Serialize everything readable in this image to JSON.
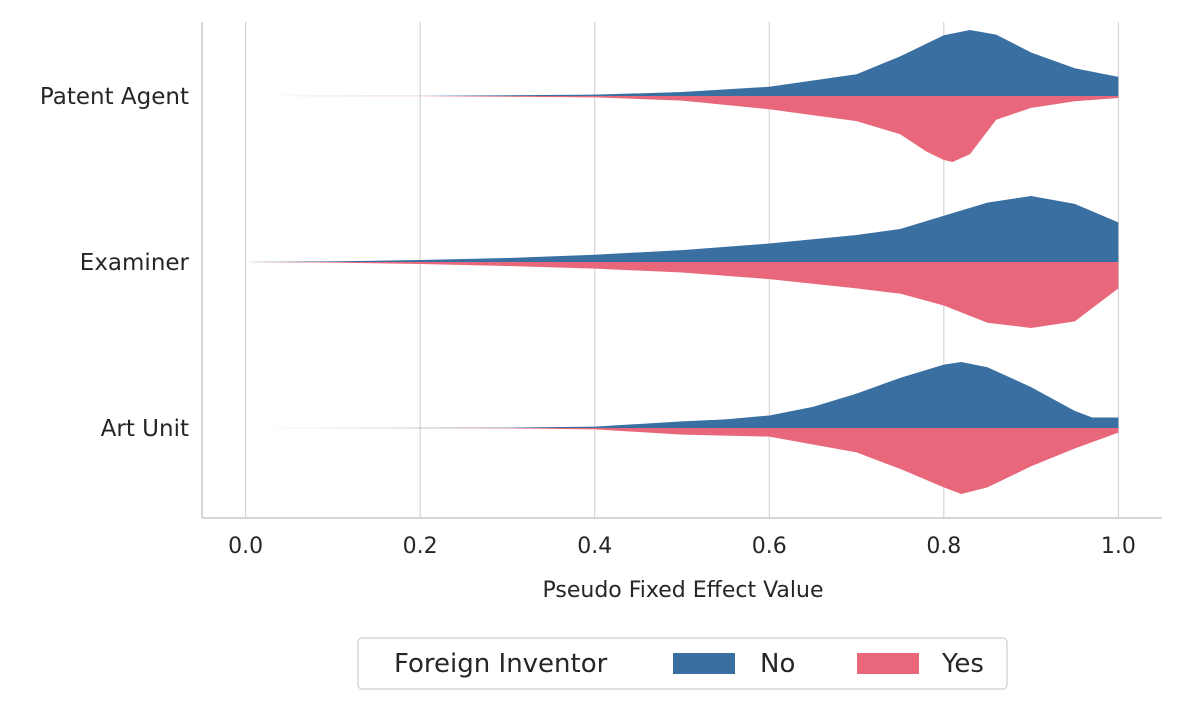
{
  "chart_data": {
    "type": "violin",
    "orientation": "horizontal",
    "split": true,
    "title": "",
    "xlabel": "Pseudo Fixed Effect Value",
    "ylabel": "",
    "xlim": [
      -0.05,
      1.05
    ],
    "x_ticks": [
      0.0,
      0.2,
      0.4,
      0.6,
      0.8,
      1.0
    ],
    "x_tick_labels": [
      "0.0",
      "0.2",
      "0.4",
      "0.6",
      "0.8",
      "1.0"
    ],
    "grid": "vertical",
    "categories": [
      "Patent Agent",
      "Examiner",
      "Art Unit"
    ],
    "legend": {
      "title": "Foreign Inventor",
      "placement": "bottom-center",
      "entries": [
        "No",
        "Yes"
      ]
    },
    "series": [
      {
        "name": "No",
        "side": "upper",
        "color": "#3a6fa2",
        "profiles": [
          {
            "category": "Patent Agent",
            "points": [
              [
                0.0,
                0.0
              ],
              [
                0.2,
                0.002
              ],
              [
                0.4,
                0.02
              ],
              [
                0.5,
                0.06
              ],
              [
                0.6,
                0.14
              ],
              [
                0.7,
                0.33
              ],
              [
                0.75,
                0.6
              ],
              [
                0.8,
                0.92
              ],
              [
                0.83,
                1.0
              ],
              [
                0.86,
                0.93
              ],
              [
                0.9,
                0.66
              ],
              [
                0.95,
                0.42
              ],
              [
                1.0,
                0.29
              ]
            ]
          },
          {
            "category": "Examiner",
            "points": [
              [
                0.0,
                0.0
              ],
              [
                0.1,
                0.01
              ],
              [
                0.2,
                0.03
              ],
              [
                0.3,
                0.06
              ],
              [
                0.4,
                0.11
              ],
              [
                0.5,
                0.18
              ],
              [
                0.6,
                0.28
              ],
              [
                0.7,
                0.41
              ],
              [
                0.75,
                0.5
              ],
              [
                0.8,
                0.7
              ],
              [
                0.85,
                0.9
              ],
              [
                0.9,
                1.0
              ],
              [
                0.95,
                0.88
              ],
              [
                1.0,
                0.6
              ]
            ]
          },
          {
            "category": "Art Unit",
            "points": [
              [
                0.0,
                0.0
              ],
              [
                0.3,
                0.005
              ],
              [
                0.4,
                0.02
              ],
              [
                0.5,
                0.1
              ],
              [
                0.55,
                0.13
              ],
              [
                0.6,
                0.19
              ],
              [
                0.65,
                0.32
              ],
              [
                0.7,
                0.52
              ],
              [
                0.75,
                0.76
              ],
              [
                0.8,
                0.96
              ],
              [
                0.82,
                1.0
              ],
              [
                0.85,
                0.92
              ],
              [
                0.9,
                0.62
              ],
              [
                0.95,
                0.26
              ],
              [
                0.97,
                0.16
              ],
              [
                1.0,
                0.16
              ]
            ]
          }
        ]
      },
      {
        "name": "Yes",
        "side": "lower",
        "color": "#e8677a",
        "profiles": [
          {
            "category": "Patent Agent",
            "points": [
              [
                0.0,
                0.0
              ],
              [
                0.2,
                0.002
              ],
              [
                0.4,
                0.02
              ],
              [
                0.5,
                0.07
              ],
              [
                0.6,
                0.2
              ],
              [
                0.7,
                0.38
              ],
              [
                0.75,
                0.58
              ],
              [
                0.78,
                0.84
              ],
              [
                0.8,
                0.97
              ],
              [
                0.81,
                1.0
              ],
              [
                0.83,
                0.88
              ],
              [
                0.86,
                0.36
              ],
              [
                0.9,
                0.18
              ],
              [
                0.95,
                0.08
              ],
              [
                1.0,
                0.03
              ]
            ]
          },
          {
            "category": "Examiner",
            "points": [
              [
                0.0,
                0.0
              ],
              [
                0.1,
                0.01
              ],
              [
                0.2,
                0.03
              ],
              [
                0.3,
                0.06
              ],
              [
                0.4,
                0.1
              ],
              [
                0.5,
                0.16
              ],
              [
                0.6,
                0.26
              ],
              [
                0.7,
                0.4
              ],
              [
                0.75,
                0.48
              ],
              [
                0.8,
                0.66
              ],
              [
                0.85,
                0.92
              ],
              [
                0.9,
                1.0
              ],
              [
                0.95,
                0.9
              ],
              [
                1.0,
                0.4
              ]
            ]
          },
          {
            "category": "Art Unit",
            "points": [
              [
                0.0,
                0.0
              ],
              [
                0.3,
                0.005
              ],
              [
                0.4,
                0.02
              ],
              [
                0.5,
                0.1
              ],
              [
                0.6,
                0.13
              ],
              [
                0.7,
                0.37
              ],
              [
                0.75,
                0.62
              ],
              [
                0.8,
                0.9
              ],
              [
                0.82,
                1.0
              ],
              [
                0.85,
                0.9
              ],
              [
                0.9,
                0.58
              ],
              [
                0.95,
                0.31
              ],
              [
                1.0,
                0.07
              ]
            ]
          }
        ]
      }
    ]
  }
}
